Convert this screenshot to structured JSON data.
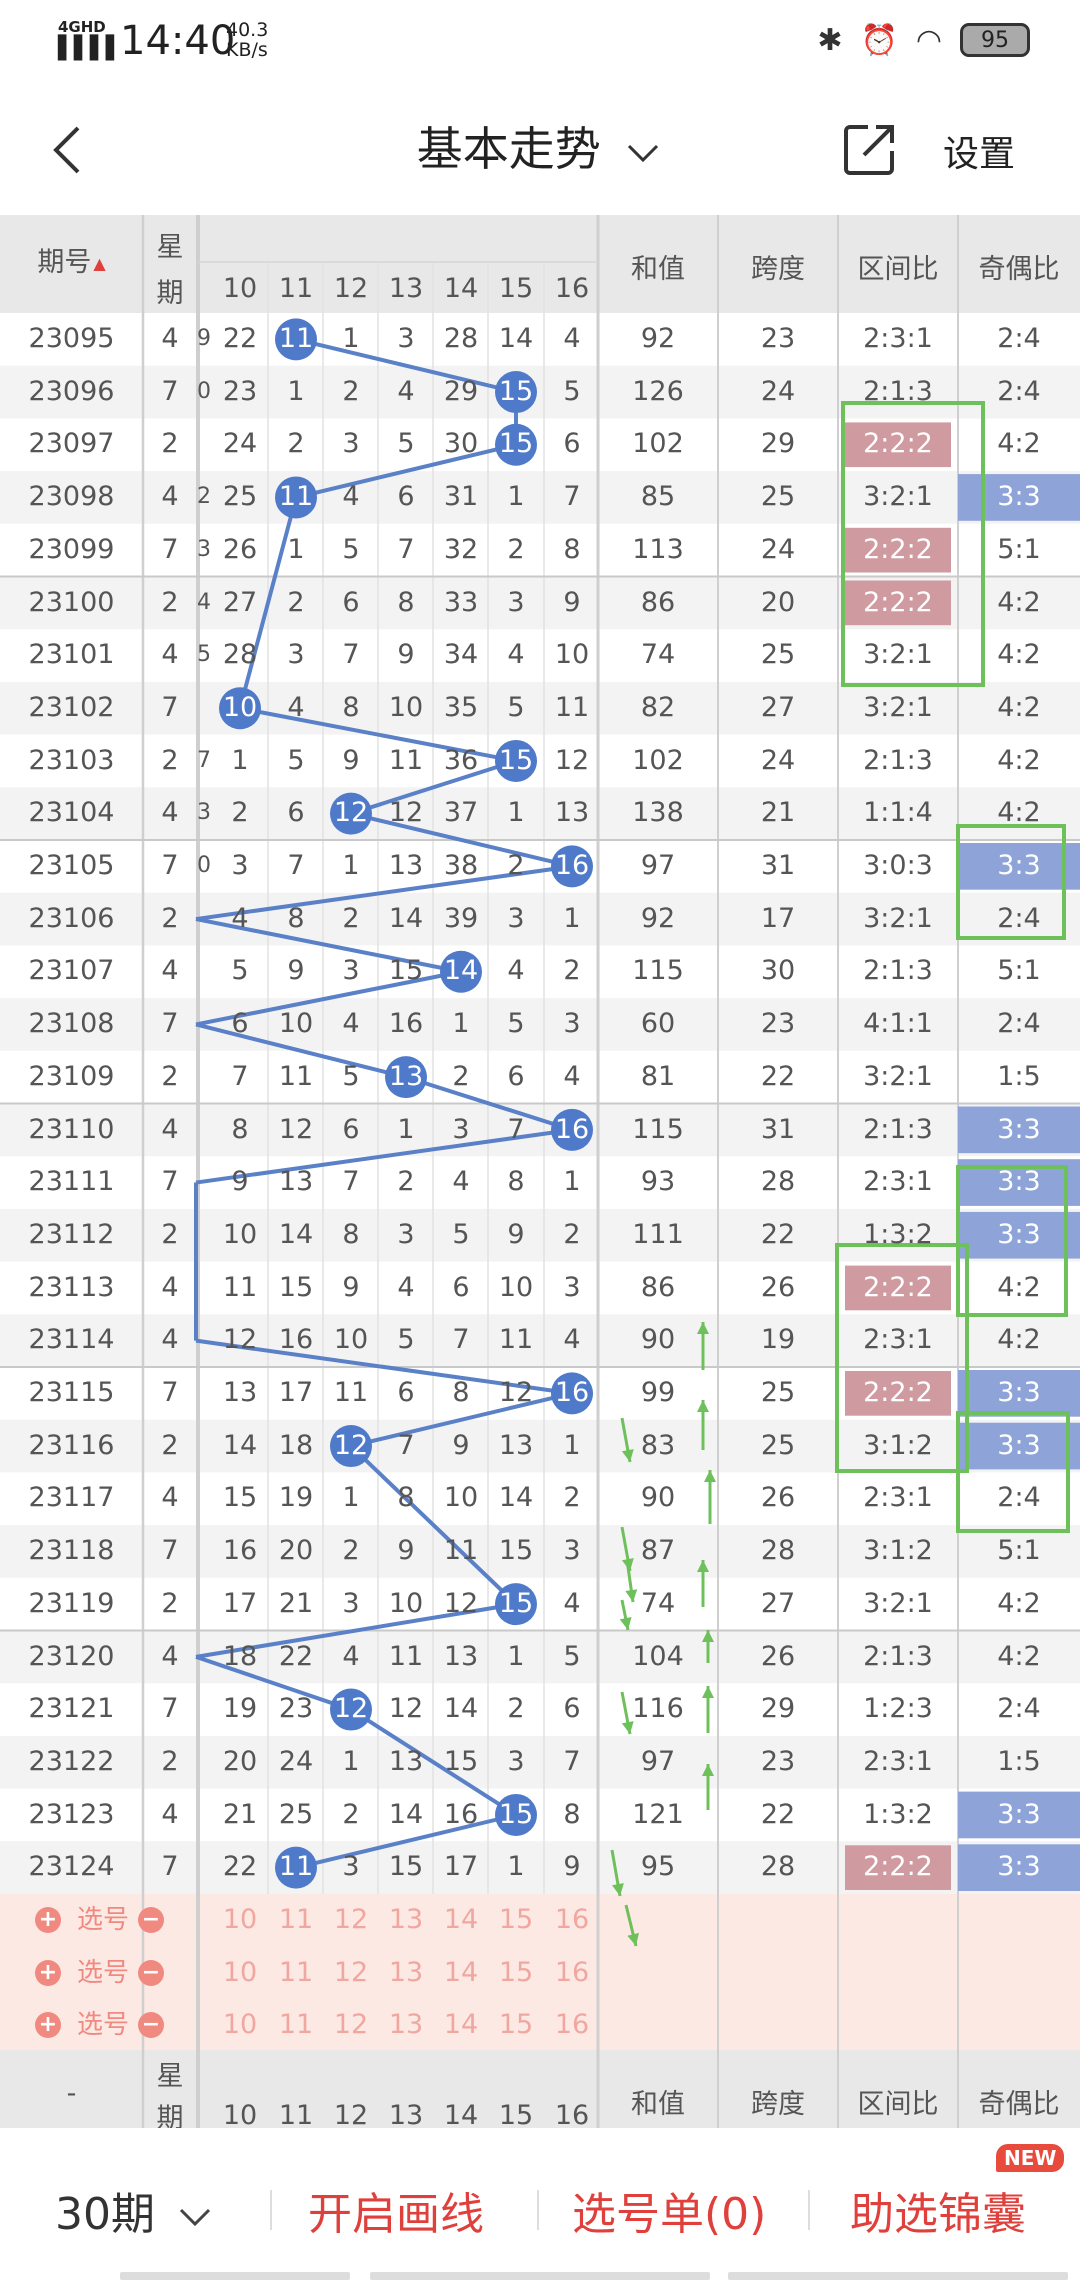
{
  "status_bar": {
    "signal": "4GHD",
    "time": "14:40",
    "net_speed_value": "40.3",
    "net_speed_unit": "KB/s",
    "battery": "95"
  },
  "header": {
    "title": "基本走势",
    "settings_label": "设置"
  },
  "table_header": {
    "period": "期号",
    "weekday_top": "星",
    "weekday_bottom": "期",
    "sum": "和值",
    "span": "跨度",
    "zone_ratio": "区间比",
    "odd_even_ratio": "奇偶比"
  },
  "number_columns": [
    "10",
    "11",
    "12",
    "13",
    "14",
    "15",
    "16"
  ],
  "rows": [
    {
      "period": "23095",
      "weekday": "4",
      "nums": [
        "22",
        "11",
        "1",
        "3",
        "28",
        "14",
        "4"
      ],
      "hit": 11,
      "sum": "92",
      "span": "23",
      "zone": "2:3:1",
      "oe": "2:4",
      "zone_hl": false,
      "oe_hl": false
    },
    {
      "period": "23096",
      "weekday": "7",
      "nums": [
        "23",
        "1",
        "2",
        "4",
        "29",
        "15",
        "5"
      ],
      "hit": 15,
      "sum": "126",
      "span": "24",
      "zone": "2:1:3",
      "oe": "2:4",
      "zone_hl": false,
      "oe_hl": false
    },
    {
      "period": "23097",
      "weekday": "2",
      "nums": [
        "24",
        "2",
        "3",
        "5",
        "30",
        "15",
        "6"
      ],
      "hit": 15,
      "sum": "102",
      "span": "29",
      "zone": "2:2:2",
      "oe": "4:2",
      "zone_hl": true,
      "oe_hl": false
    },
    {
      "period": "23098",
      "weekday": "4",
      "nums": [
        "25",
        "11",
        "4",
        "6",
        "31",
        "1",
        "7"
      ],
      "hit": 11,
      "sum": "85",
      "span": "25",
      "zone": "3:2:1",
      "oe": "3:3",
      "zone_hl": false,
      "oe_hl": true
    },
    {
      "period": "23099",
      "weekday": "7",
      "nums": [
        "26",
        "1",
        "5",
        "7",
        "32",
        "2",
        "8"
      ],
      "hit": null,
      "sum": "113",
      "span": "24",
      "zone": "2:2:2",
      "oe": "5:1",
      "zone_hl": true,
      "oe_hl": false
    },
    {
      "period": "23100",
      "weekday": "2",
      "nums": [
        "27",
        "2",
        "6",
        "8",
        "33",
        "3",
        "9"
      ],
      "hit": null,
      "sum": "86",
      "span": "20",
      "zone": "2:2:2",
      "oe": "4:2",
      "zone_hl": true,
      "oe_hl": false
    },
    {
      "period": "23101",
      "weekday": "4",
      "nums": [
        "28",
        "3",
        "7",
        "9",
        "34",
        "4",
        "10"
      ],
      "hit": null,
      "sum": "74",
      "span": "25",
      "zone": "3:2:1",
      "oe": "4:2",
      "zone_hl": false,
      "oe_hl": false
    },
    {
      "period": "23102",
      "weekday": "7",
      "nums": [
        "10",
        "4",
        "8",
        "10",
        "35",
        "5",
        "11"
      ],
      "hit": 10,
      "sum": "82",
      "span": "27",
      "zone": "3:2:1",
      "oe": "4:2",
      "zone_hl": false,
      "oe_hl": false
    },
    {
      "period": "23103",
      "weekday": "2",
      "nums": [
        "1",
        "5",
        "9",
        "11",
        "36",
        "15",
        "12"
      ],
      "hit": 15,
      "sum": "102",
      "span": "24",
      "zone": "2:1:3",
      "oe": "4:2",
      "zone_hl": false,
      "oe_hl": false
    },
    {
      "period": "23104",
      "weekday": "4",
      "nums": [
        "2",
        "6",
        "12",
        "12",
        "37",
        "1",
        "13"
      ],
      "hit": 12,
      "sum": "138",
      "span": "21",
      "zone": "1:1:4",
      "oe": "4:2",
      "zone_hl": false,
      "oe_hl": false
    },
    {
      "period": "23105",
      "weekday": "7",
      "nums": [
        "3",
        "7",
        "1",
        "13",
        "38",
        "2",
        "16"
      ],
      "hit": 16,
      "sum": "97",
      "span": "31",
      "zone": "3:0:3",
      "oe": "3:3",
      "zone_hl": false,
      "oe_hl": true
    },
    {
      "period": "23106",
      "weekday": "2",
      "nums": [
        "4",
        "8",
        "2",
        "14",
        "39",
        "3",
        "1"
      ],
      "hit": null,
      "sum": "92",
      "span": "17",
      "zone": "3:2:1",
      "oe": "2:4",
      "zone_hl": false,
      "oe_hl": false
    },
    {
      "period": "23107",
      "weekday": "4",
      "nums": [
        "5",
        "9",
        "3",
        "15",
        "14",
        "4",
        "2"
      ],
      "hit": 14,
      "sum": "115",
      "span": "30",
      "zone": "2:1:3",
      "oe": "5:1",
      "zone_hl": false,
      "oe_hl": false
    },
    {
      "period": "23108",
      "weekday": "7",
      "nums": [
        "6",
        "10",
        "4",
        "16",
        "1",
        "5",
        "3"
      ],
      "hit": null,
      "sum": "60",
      "span": "23",
      "zone": "4:1:1",
      "oe": "2:4",
      "zone_hl": false,
      "oe_hl": false
    },
    {
      "period": "23109",
      "weekday": "2",
      "nums": [
        "7",
        "11",
        "5",
        "13",
        "2",
        "6",
        "4"
      ],
      "hit": 13,
      "sum": "81",
      "span": "22",
      "zone": "3:2:1",
      "oe": "1:5",
      "zone_hl": false,
      "oe_hl": false
    },
    {
      "period": "23110",
      "weekday": "4",
      "nums": [
        "8",
        "12",
        "6",
        "1",
        "3",
        "7",
        "16"
      ],
      "hit": 16,
      "sum": "115",
      "span": "31",
      "zone": "2:1:3",
      "oe": "3:3",
      "zone_hl": false,
      "oe_hl": true
    },
    {
      "period": "23111",
      "weekday": "7",
      "nums": [
        "9",
        "13",
        "7",
        "2",
        "4",
        "8",
        "1"
      ],
      "hit": null,
      "sum": "93",
      "span": "28",
      "zone": "2:3:1",
      "oe": "3:3",
      "zone_hl": false,
      "oe_hl": true
    },
    {
      "period": "23112",
      "weekday": "2",
      "nums": [
        "10",
        "14",
        "8",
        "3",
        "5",
        "9",
        "2"
      ],
      "hit": null,
      "sum": "111",
      "span": "22",
      "zone": "1:3:2",
      "oe": "3:3",
      "zone_hl": false,
      "oe_hl": true
    },
    {
      "period": "23113",
      "weekday": "4",
      "nums": [
        "11",
        "15",
        "9",
        "4",
        "6",
        "10",
        "3"
      ],
      "hit": null,
      "sum": "86",
      "span": "26",
      "zone": "2:2:2",
      "oe": "4:2",
      "zone_hl": true,
      "oe_hl": false
    },
    {
      "period": "23114",
      "weekday": "4",
      "nums": [
        "12",
        "16",
        "10",
        "5",
        "7",
        "11",
        "4"
      ],
      "hit": null,
      "sum": "90",
      "span": "19",
      "zone": "2:3:1",
      "oe": "4:2",
      "zone_hl": false,
      "oe_hl": false
    },
    {
      "period": "23115",
      "weekday": "7",
      "nums": [
        "13",
        "17",
        "11",
        "6",
        "8",
        "12",
        "16"
      ],
      "hit": 16,
      "sum": "99",
      "span": "25",
      "zone": "2:2:2",
      "oe": "3:3",
      "zone_hl": true,
      "oe_hl": true
    },
    {
      "period": "23116",
      "weekday": "2",
      "nums": [
        "14",
        "18",
        "12",
        "7",
        "9",
        "13",
        "1"
      ],
      "hit": 12,
      "sum": "83",
      "span": "25",
      "zone": "3:1:2",
      "oe": "3:3",
      "zone_hl": false,
      "oe_hl": true
    },
    {
      "period": "23117",
      "weekday": "4",
      "nums": [
        "15",
        "19",
        "1",
        "8",
        "10",
        "14",
        "2"
      ],
      "hit": null,
      "sum": "90",
      "span": "26",
      "zone": "2:3:1",
      "oe": "2:4",
      "zone_hl": false,
      "oe_hl": false
    },
    {
      "period": "23118",
      "weekday": "7",
      "nums": [
        "16",
        "20",
        "2",
        "9",
        "11",
        "15",
        "3"
      ],
      "hit": null,
      "sum": "87",
      "span": "28",
      "zone": "3:1:2",
      "oe": "5:1",
      "zone_hl": false,
      "oe_hl": false
    },
    {
      "period": "23119",
      "weekday": "2",
      "nums": [
        "17",
        "21",
        "3",
        "10",
        "12",
        "15",
        "4"
      ],
      "hit": 15,
      "sum": "74",
      "span": "27",
      "zone": "3:2:1",
      "oe": "4:2",
      "zone_hl": false,
      "oe_hl": false
    },
    {
      "period": "23120",
      "weekday": "4",
      "nums": [
        "18",
        "22",
        "4",
        "11",
        "13",
        "1",
        "5"
      ],
      "hit": null,
      "sum": "104",
      "span": "26",
      "zone": "2:1:3",
      "oe": "4:2",
      "zone_hl": false,
      "oe_hl": false
    },
    {
      "period": "23121",
      "weekday": "7",
      "nums": [
        "19",
        "23",
        "12",
        "12",
        "14",
        "2",
        "6"
      ],
      "hit": 12,
      "sum": "116",
      "span": "29",
      "zone": "1:2:3",
      "oe": "2:4",
      "zone_hl": false,
      "oe_hl": false
    },
    {
      "period": "23122",
      "weekday": "2",
      "nums": [
        "20",
        "24",
        "1",
        "13",
        "15",
        "3",
        "7"
      ],
      "hit": null,
      "sum": "97",
      "span": "23",
      "zone": "2:3:1",
      "oe": "1:5",
      "zone_hl": false,
      "oe_hl": false
    },
    {
      "period": "23123",
      "weekday": "4",
      "nums": [
        "21",
        "25",
        "2",
        "14",
        "16",
        "15",
        "8"
      ],
      "hit": 15,
      "sum": "121",
      "span": "22",
      "zone": "1:3:2",
      "oe": "3:3",
      "zone_hl": false,
      "oe_hl": true
    },
    {
      "period": "23124",
      "weekday": "7",
      "nums": [
        "22",
        "11",
        "3",
        "15",
        "17",
        "1",
        "9"
      ],
      "hit": 11,
      "sum": "95",
      "span": "28",
      "zone": "2:2:2",
      "oe": "3:3",
      "zone_hl": true,
      "oe_hl": true
    }
  ],
  "edge_partials": [
    {
      "row": 0,
      "text": "9"
    },
    {
      "row": 1,
      "text": "0"
    },
    {
      "row": 3,
      "text": "2"
    },
    {
      "row": 4,
      "text": "3"
    },
    {
      "row": 5,
      "text": "4"
    },
    {
      "row": 6,
      "text": "5"
    },
    {
      "row": 8,
      "text": "7"
    },
    {
      "row": 9,
      "text": "3"
    },
    {
      "row": 10,
      "text": "0"
    }
  ],
  "off_left_rows": [
    7,
    10,
    11,
    13,
    16,
    19,
    21,
    24,
    25,
    28
  ],
  "pick_rows": [
    {
      "label": "选号",
      "nums": [
        "10",
        "11",
        "12",
        "13",
        "14",
        "15",
        "16"
      ]
    },
    {
      "label": "选号",
      "nums": [
        "10",
        "11",
        "12",
        "13",
        "14",
        "15",
        "16"
      ]
    },
    {
      "label": "选号",
      "nums": [
        "10",
        "11",
        "12",
        "13",
        "14",
        "15",
        "16"
      ]
    }
  ],
  "footer_header": {
    "dash": "-",
    "weekday_top": "星",
    "weekday_bottom": "期",
    "sum": "和值",
    "span": "跨度",
    "zone_ratio": "区间比",
    "odd_even_ratio": "奇偶比"
  },
  "bottom_bar": {
    "period_select": "30期",
    "draw_lines": "开启画线",
    "pick_list": "选号单(0)",
    "assist": "助选锦囊",
    "new_badge": "NEW"
  },
  "colors": {
    "ball": "#4f79c9",
    "trend_line": "#5a80c8",
    "zone_hl": "#cf9aa0",
    "oe_hl": "#8ea4d8",
    "box": "#6ec05a",
    "accent_red": "#e0403c",
    "pick_bg": "#fde9e4",
    "pick_text": "#f0a7a0"
  }
}
